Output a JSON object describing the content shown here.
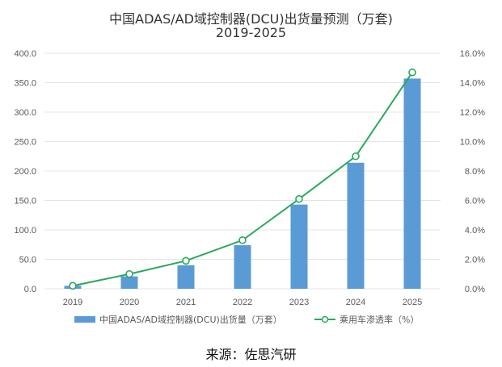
{
  "chart_data": {
    "type": "bar",
    "title": "中国ADAS/AD域控制器(DCU)出货量预测（万套)",
    "subtitle": "2019-2025",
    "categories": [
      "2019",
      "2020",
      "2021",
      "2022",
      "2023",
      "2024",
      "2025"
    ],
    "series": [
      {
        "name": "中国ADAS/AD域控制器(DCU)出货量（万套）",
        "type": "bar",
        "axis": "left",
        "values": [
          5,
          21,
          40,
          74,
          143,
          214,
          357
        ]
      },
      {
        "name": "乘用车渗透率（%）",
        "type": "line",
        "axis": "right",
        "values": [
          0.2,
          1.0,
          1.9,
          3.3,
          6.1,
          9.0,
          14.7
        ]
      }
    ],
    "y_left": {
      "lim": [
        0,
        400
      ],
      "ticks": [
        "0.0",
        "50.0",
        "100.0",
        "150.0",
        "200.0",
        "250.0",
        "300.0",
        "350.0",
        "400.0"
      ]
    },
    "y_right": {
      "lim": [
        0,
        16
      ],
      "ticks": [
        "0.0%",
        "2.0%",
        "4.0%",
        "6.0%",
        "8.0%",
        "10.0%",
        "12.0%",
        "14.0%",
        "16.0%"
      ]
    },
    "grid": true,
    "legend_position": "bottom",
    "colors": {
      "bar": "#5b9bd5",
      "line": "#2aa95c",
      "grid": "#e4e4e4",
      "axis_text": "#595959"
    }
  },
  "footer": {
    "source": "来源：佐思汽研"
  }
}
